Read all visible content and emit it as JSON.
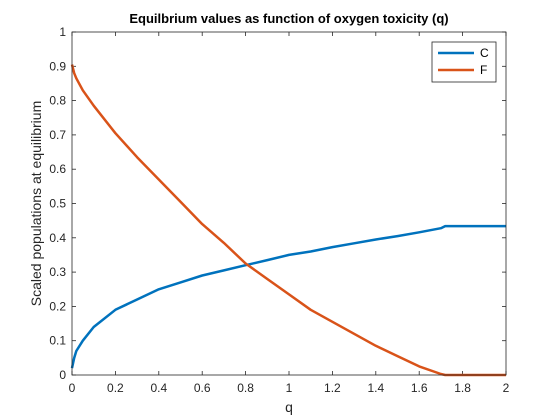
{
  "chart_data": {
    "type": "line",
    "title": "Equilbrium values as function of oxygen toxicity (q)",
    "xlabel": "q",
    "ylabel": "Scaled populations at equilibrium",
    "xlim": [
      0,
      2
    ],
    "ylim": [
      0,
      1
    ],
    "xticks": [
      "0",
      "0.2",
      "0.4",
      "0.6",
      "0.8",
      "1",
      "1.2",
      "1.4",
      "1.6",
      "1.8",
      "2"
    ],
    "yticks": [
      "0",
      "0.1",
      "0.2",
      "0.3",
      "0.4",
      "0.5",
      "0.6",
      "0.7",
      "0.8",
      "0.9",
      "1"
    ],
    "grid": false,
    "legend_position": "top-right",
    "series": [
      {
        "name": "C",
        "color": "#0072BD",
        "x": [
          0,
          0.01,
          0.02,
          0.05,
          0.1,
          0.2,
          0.3,
          0.4,
          0.5,
          0.6,
          0.7,
          0.8,
          0.9,
          1.0,
          1.1,
          1.2,
          1.3,
          1.4,
          1.5,
          1.6,
          1.7,
          1.72,
          1.8,
          1.9,
          2.0
        ],
        "values": [
          0.02,
          0.05,
          0.07,
          0.1,
          0.14,
          0.19,
          0.22,
          0.25,
          0.27,
          0.29,
          0.305,
          0.32,
          0.335,
          0.35,
          0.36,
          0.373,
          0.384,
          0.395,
          0.405,
          0.416,
          0.428,
          0.434,
          0.434,
          0.434,
          0.434
        ]
      },
      {
        "name": "F",
        "color": "#D95319",
        "x": [
          0,
          0.01,
          0.02,
          0.05,
          0.1,
          0.2,
          0.3,
          0.4,
          0.5,
          0.6,
          0.7,
          0.8,
          0.9,
          1.0,
          1.1,
          1.2,
          1.3,
          1.4,
          1.5,
          1.6,
          1.7,
          1.72,
          1.8,
          1.9,
          2.0
        ],
        "values": [
          0.905,
          0.88,
          0.865,
          0.83,
          0.785,
          0.705,
          0.635,
          0.57,
          0.505,
          0.44,
          0.385,
          0.325,
          0.28,
          0.235,
          0.19,
          0.155,
          0.12,
          0.085,
          0.055,
          0.025,
          0.003,
          0.0,
          0.0,
          0.0,
          0.0
        ]
      }
    ]
  }
}
